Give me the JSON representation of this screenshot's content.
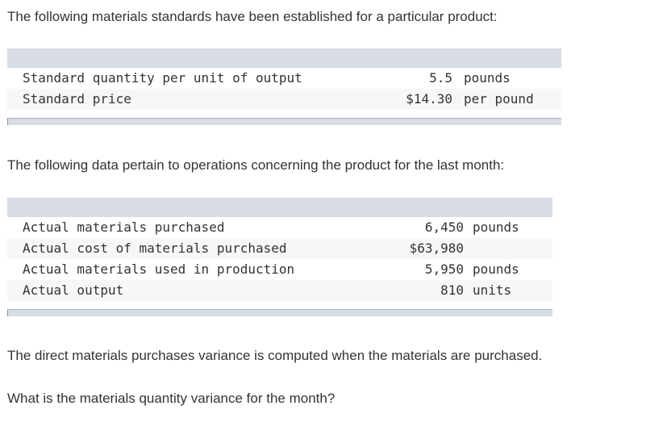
{
  "intro1": "The following materials standards have been established for a particular product:",
  "standards": {
    "rows": [
      {
        "label": "Standard quantity per unit of output",
        "value": "5.5",
        "unit": "pounds"
      },
      {
        "label": "Standard price",
        "value": "$14.30",
        "unit": "per pound"
      }
    ]
  },
  "intro2": "The following data pertain to operations concerning the product for the last month:",
  "actuals": {
    "rows": [
      {
        "label": "Actual materials purchased",
        "value": "6,450",
        "unit": "pounds"
      },
      {
        "label": "Actual cost of materials purchased",
        "value": "$63,980",
        "unit": ""
      },
      {
        "label": "Actual materials used in production",
        "value": "5,950",
        "unit": "pounds"
      },
      {
        "label": "Actual output",
        "value": "810",
        "unit": "units"
      }
    ]
  },
  "note": "The direct materials purchases variance is computed when the materials are purchased.",
  "question": "What is the materials quantity variance for the month?"
}
